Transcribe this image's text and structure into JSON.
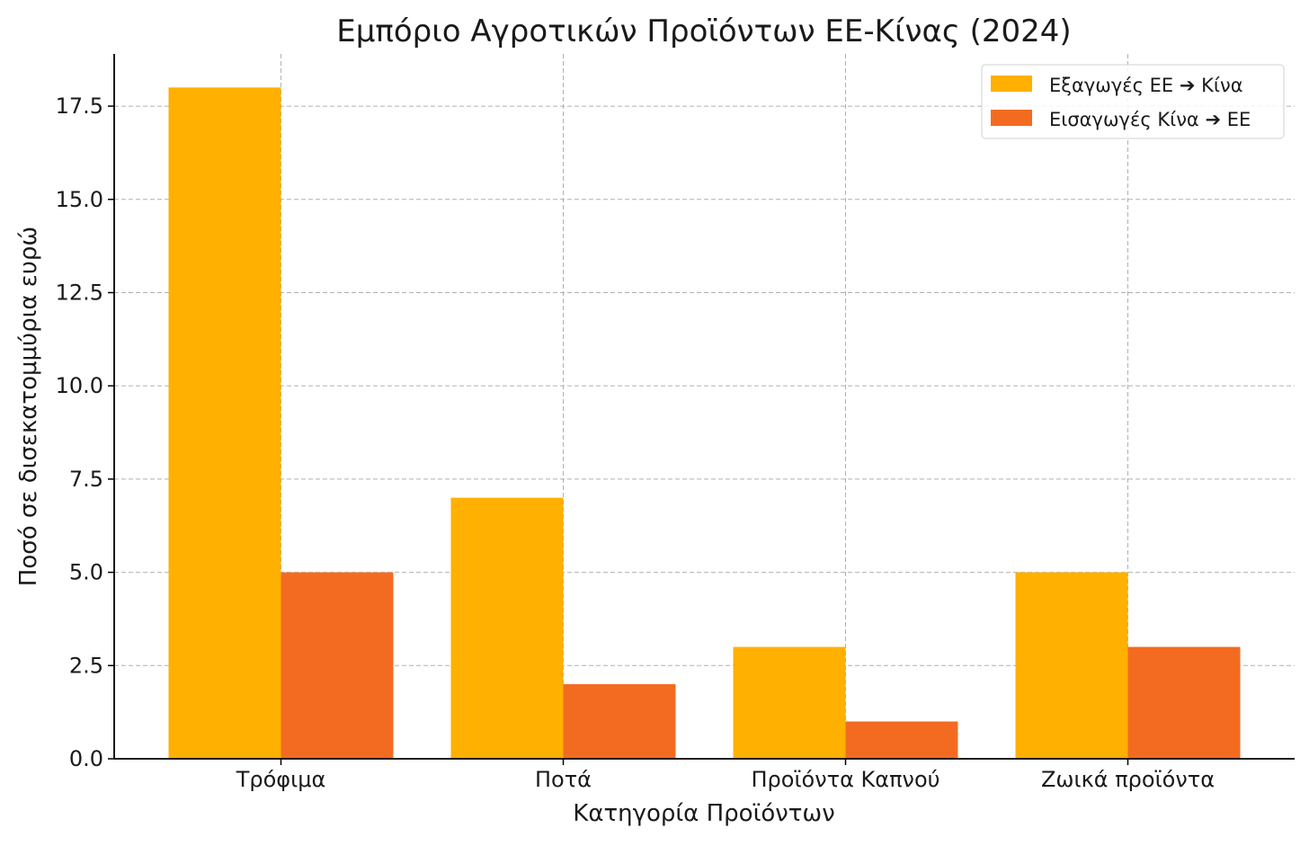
{
  "chart_data": {
    "type": "bar",
    "title": "Εμπόριο Αγροτικών Προϊόντων ΕΕ-Κίνας (2024)",
    "xlabel": "Κατηγορία Προϊόντων",
    "ylabel": "Ποσό σε δισεκατομμύρια ευρώ",
    "categories": [
      "Τρόφιμα",
      "Ποτά",
      "Προϊόντα Καπνού",
      "Ζωικά προϊόντα"
    ],
    "series": [
      {
        "name": "Εξαγωγές ΕΕ ➔ Κίνα",
        "color": "#FFB000",
        "values": [
          18,
          7,
          3,
          5
        ]
      },
      {
        "name": "Εισαγωγές Κίνα ➔ ΕΕ",
        "color": "#F36B21",
        "values": [
          5,
          2,
          1,
          3
        ]
      }
    ],
    "ylim": [
      0,
      18.9
    ],
    "yticks": [
      "0.0",
      "2.5",
      "5.0",
      "7.5",
      "10.0",
      "12.5",
      "15.0",
      "17.5"
    ],
    "grid": true,
    "legend_position": "top-right"
  }
}
